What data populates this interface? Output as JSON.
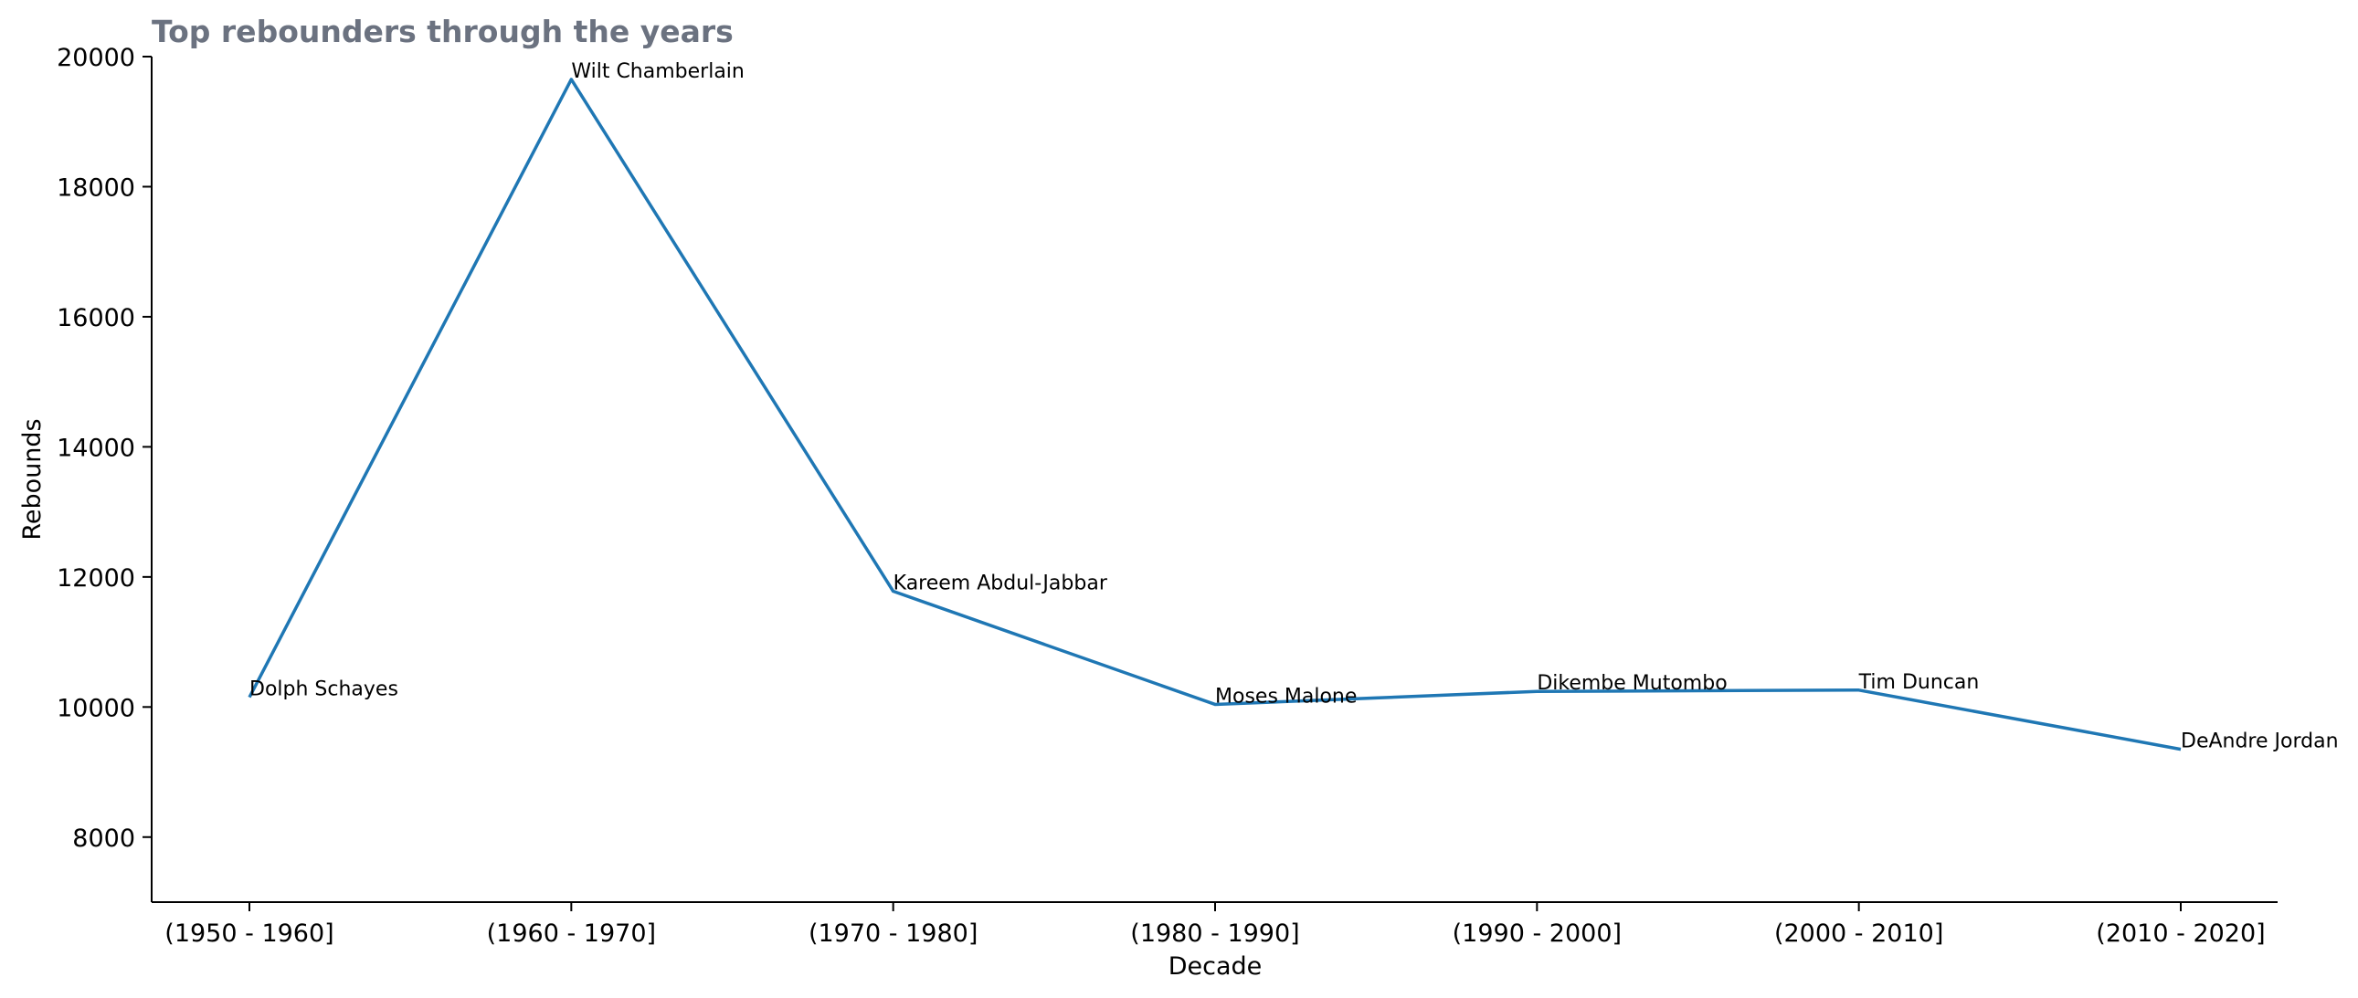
{
  "chart_data": {
    "type": "line",
    "title": "Top rebounders through the years",
    "xlabel": "Decade",
    "ylabel": "Rebounds",
    "categories": [
      "(1950 - 1960]",
      "(1960 - 1970]",
      "(1970 - 1980]",
      "(1980 - 1990]",
      "(1990 - 2000]",
      "(2000 - 2010]",
      "(2010 - 2020]"
    ],
    "series": [
      {
        "values": [
          10150,
          19650,
          11780,
          10040,
          10240,
          10260,
          9350
        ],
        "point_labels": [
          "Dolph Schayes",
          "Wilt Chamberlain",
          "Kareem Abdul-Jabbar",
          "Moses Malone",
          "Dikembe Mutombo",
          "Tim Duncan",
          "DeAndre Jordan"
        ]
      }
    ],
    "ylim": [
      7000,
      20000
    ],
    "yticks": [
      "8000",
      "10000",
      "12000",
      "14000",
      "16000",
      "18000",
      "20000"
    ],
    "grid": false,
    "colors": {
      "line": "#1f77b4",
      "title": "#6b7280",
      "axis": "#000000"
    }
  }
}
